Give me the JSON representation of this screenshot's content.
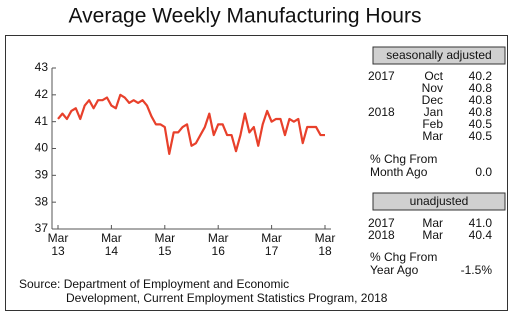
{
  "chart_data": {
    "type": "line",
    "title": "Average Weekly Manufacturing Hours",
    "categories": [
      {
        "month": "Mar",
        "year": "13"
      },
      null,
      null,
      null,
      null,
      null,
      null,
      null,
      null,
      null,
      null,
      null,
      {
        "month": "Mar",
        "year": "14"
      },
      null,
      null,
      null,
      null,
      null,
      null,
      null,
      null,
      null,
      null,
      null,
      {
        "month": "Mar",
        "year": "15"
      },
      null,
      null,
      null,
      null,
      null,
      null,
      null,
      null,
      null,
      null,
      null,
      {
        "month": "Mar",
        "year": "16"
      },
      null,
      null,
      null,
      null,
      null,
      null,
      null,
      null,
      null,
      null,
      null,
      {
        "month": "Mar",
        "year": "17"
      },
      null,
      null,
      null,
      null,
      null,
      null,
      null,
      null,
      null,
      null,
      null,
      {
        "month": "Mar",
        "year": "18"
      }
    ],
    "series": [
      {
        "color": "#e8402b",
        "values": [
          41.1,
          41.3,
          41.1,
          41.4,
          41.5,
          41.1,
          41.6,
          41.8,
          41.5,
          41.8,
          41.8,
          41.9,
          41.6,
          41.5,
          42.0,
          41.9,
          41.7,
          41.8,
          41.7,
          41.8,
          41.6,
          41.2,
          40.9,
          40.9,
          40.8,
          39.8,
          40.6,
          40.6,
          40.8,
          40.9,
          40.1,
          40.2,
          40.5,
          40.8,
          41.3,
          40.5,
          40.9,
          40.9,
          40.5,
          40.5,
          39.9,
          40.5,
          41.3,
          40.6,
          40.8,
          40.1,
          40.9,
          41.4,
          41.0,
          41.1,
          41.1,
          40.5,
          41.1,
          41.0,
          41.1,
          40.2,
          40.8,
          40.8,
          40.8,
          40.5,
          40.5
        ]
      }
    ],
    "ylim": [
      37,
      43
    ],
    "yticks": [
      37,
      38,
      39,
      40,
      41,
      42,
      43
    ],
    "grid": false
  },
  "panel": {
    "seasonally_adjusted": {
      "header": "seasonally adjusted",
      "rows": [
        {
          "year": "2017",
          "month": "Oct",
          "value": "40.2"
        },
        {
          "year": null,
          "month": "Nov",
          "value": "40.8"
        },
        {
          "year": null,
          "month": "Dec",
          "value": "40.8"
        },
        {
          "year": "2018",
          "month": "Jan",
          "value": "40.8"
        },
        {
          "year": null,
          "month": "Feb",
          "value": "40.5"
        },
        {
          "year": null,
          "month": "Mar",
          "value": "40.5"
        }
      ],
      "change_label": [
        "% Chg From",
        "Month Ago"
      ],
      "change_value": "0.0"
    },
    "unadjusted": {
      "header": "unadjusted",
      "rows": [
        {
          "year": "2017",
          "month": "Mar",
          "value": "41.0"
        },
        {
          "year": "2018",
          "month": "Mar",
          "value": "40.4"
        }
      ],
      "change_label": [
        "% Chg From",
        "Year Ago"
      ],
      "change_value": "-1.5%"
    }
  },
  "source": [
    "Source:  Department of Employment and Economic",
    "Development, Current Employment Statistics Program, 2018"
  ]
}
